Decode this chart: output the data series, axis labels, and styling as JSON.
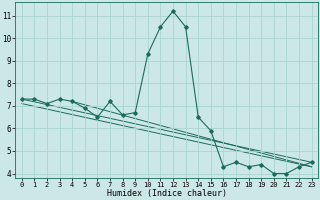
{
  "title": "",
  "xlabel": "Humidex (Indice chaleur)",
  "ylabel": "",
  "bg_color": "#cce8e6",
  "grid_color": "#aad4d2",
  "line_color": "#1a6b5a",
  "xlim": [
    -0.5,
    23.5
  ],
  "ylim": [
    3.8,
    11.6
  ],
  "yticks": [
    4,
    5,
    6,
    7,
    8,
    9,
    10,
    11
  ],
  "xticks": [
    0,
    1,
    2,
    3,
    4,
    5,
    6,
    7,
    8,
    9,
    10,
    11,
    12,
    13,
    14,
    15,
    16,
    17,
    18,
    19,
    20,
    21,
    22,
    23
  ],
  "series": [
    [
      0,
      7.3
    ],
    [
      1,
      7.3
    ],
    [
      2,
      7.1
    ],
    [
      3,
      7.3
    ],
    [
      4,
      7.2
    ],
    [
      5,
      6.9
    ],
    [
      6,
      6.5
    ],
    [
      7,
      7.2
    ],
    [
      8,
      6.6
    ],
    [
      9,
      6.7
    ],
    [
      10,
      9.3
    ],
    [
      11,
      10.5
    ],
    [
      12,
      11.2
    ],
    [
      13,
      10.5
    ],
    [
      14,
      6.5
    ],
    [
      15,
      5.9
    ],
    [
      16,
      4.3
    ],
    [
      17,
      4.5
    ],
    [
      18,
      4.3
    ],
    [
      19,
      4.4
    ],
    [
      20,
      4.0
    ],
    [
      21,
      4.0
    ],
    [
      22,
      4.3
    ],
    [
      23,
      4.5
    ]
  ],
  "trend_lines": [
    [
      [
        0,
        7.3
      ],
      [
        23,
        4.5
      ]
    ],
    [
      [
        0,
        7.1
      ],
      [
        23,
        4.3
      ]
    ],
    [
      [
        4,
        7.2
      ],
      [
        23,
        4.3
      ]
    ]
  ],
  "xlabel_fontsize": 6.0,
  "tick_fontsize": 5.0
}
